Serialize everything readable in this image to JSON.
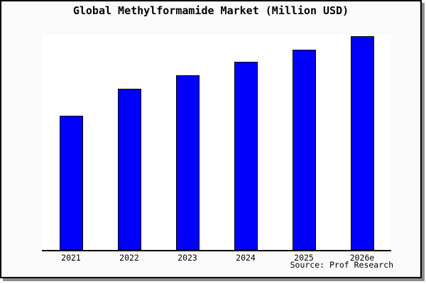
{
  "page": {
    "title": "Global Methylformamide Market (Million USD)",
    "source_label": "Source: Prof Research"
  },
  "chart_data": {
    "type": "bar",
    "title": "Global Methylformamide Market (Million USD)",
    "unit": "Million USD",
    "categories": [
      "2021",
      "2022",
      "2023",
      "2024",
      "2025",
      "2026e"
    ],
    "series": [
      {
        "name": "Global Methylformamide Market",
        "values_pct_of_max": [
          62.9,
          75.3,
          81.5,
          87.7,
          93.6,
          100
        ],
        "values_pct_of_plot": [
          62.5,
          74.9,
          81.1,
          87.3,
          93.1,
          99.5
        ]
      }
    ],
    "xlabel": "",
    "ylabel": "",
    "y_axis_ticks": "none",
    "grid": false,
    "legend": "none",
    "bar_color": "#0000fc",
    "bar_border_color": "#000000",
    "source": "Prof Research"
  },
  "colors": {
    "page_background": "#fafafa",
    "plot_background": "#ffffff",
    "bar": "#0000fc",
    "frame_border": "#000000",
    "axis_line": "#000000",
    "shadow": "#8c8c8c",
    "text": "#000000"
  }
}
